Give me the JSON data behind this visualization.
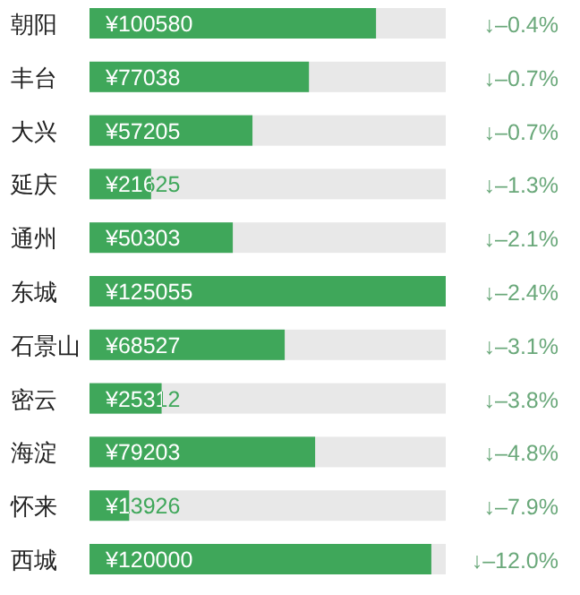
{
  "chart_data": {
    "type": "bar",
    "orientation": "horizontal",
    "categories": [
      "朝阳",
      "丰台",
      "大兴",
      "延庆",
      "通州",
      "东城",
      "石景山",
      "密云",
      "海淀",
      "怀来",
      "西城"
    ],
    "values": [
      100580,
      77038,
      57205,
      21625,
      50303,
      125055,
      68527,
      25312,
      79203,
      13926,
      120000
    ],
    "value_labels": [
      "¥100580",
      "¥77038",
      "¥57205",
      "¥21625",
      "¥50303",
      "¥125055",
      "¥68527",
      "¥25312",
      "¥79203",
      "¥13926",
      "¥120000"
    ],
    "color": "#3fa75a",
    "xlim": [
      0,
      125055
    ],
    "annotations": [
      "↓–0.4%",
      "↓–0.7%",
      "↓–0.7%",
      "↓–1.3%",
      "↓–2.1%",
      "↓–2.4%",
      "↓–3.1%",
      "↓–3.8%",
      "↓–4.8%",
      "↓–7.9%",
      "↓–12.0%"
    ]
  }
}
